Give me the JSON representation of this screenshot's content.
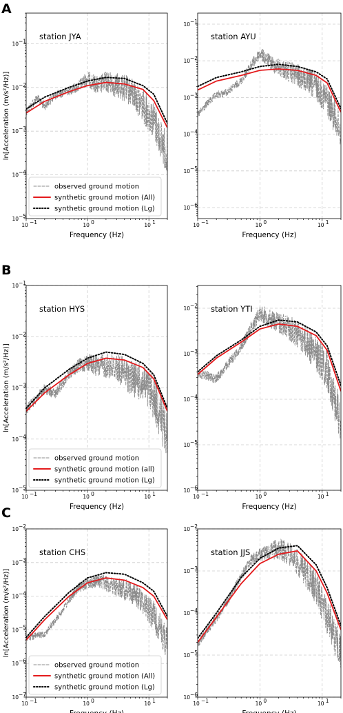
{
  "figure": {
    "panel_letters": [
      "A",
      "B",
      "C"
    ]
  },
  "colors": {
    "observed": "#8c8c8c",
    "synthetic_all": "#e41a1c",
    "synthetic_lg": "#000000",
    "grid": "#cccccc"
  },
  "chart_data": [
    {
      "type": "line",
      "panel": "A",
      "station": "station JYA",
      "xlabel": "Frequency (Hz)",
      "ylabel": "ln[Acceleration (m/s²/Hz)]",
      "xscale": "log",
      "yscale": "log",
      "xlim": [
        0.1,
        20
      ],
      "ylim": [
        -5,
        -0.3
      ],
      "yticks": [
        -5,
        -4,
        -3,
        -2,
        -1
      ],
      "grid": true,
      "legend": "lower-left",
      "legend_entries": [
        "observed ground motion",
        "synthetic ground motion (All)",
        "synthetic ground motion (Lg)"
      ],
      "synthetic_all": [
        [
          0.1,
          0.0026
        ],
        [
          0.2,
          0.0048
        ],
        [
          0.5,
          0.008
        ],
        [
          1,
          0.011
        ],
        [
          2,
          0.013
        ],
        [
          4,
          0.012
        ],
        [
          8,
          0.009
        ],
        [
          12,
          0.005
        ],
        [
          20,
          0.0012
        ]
      ],
      "synthetic_lg": [
        [
          0.1,
          0.0032
        ],
        [
          0.2,
          0.006
        ],
        [
          0.5,
          0.01
        ],
        [
          1,
          0.014
        ],
        [
          2,
          0.017
        ],
        [
          4,
          0.016
        ],
        [
          8,
          0.011
        ],
        [
          12,
          0.007
        ],
        [
          20,
          0.0015
        ]
      ],
      "observed_envelope": [
        [
          0.1,
          0.003
        ],
        [
          0.15,
          0.006
        ],
        [
          0.2,
          0.004
        ],
        [
          0.3,
          0.007
        ],
        [
          0.5,
          0.009
        ],
        [
          0.7,
          0.012
        ],
        [
          1,
          0.02
        ],
        [
          1.5,
          0.015
        ],
        [
          2,
          0.02
        ],
        [
          3,
          0.018
        ],
        [
          5,
          0.015
        ],
        [
          8,
          0.008
        ],
        [
          12,
          0.004
        ],
        [
          20,
          0.0007
        ]
      ]
    },
    {
      "type": "line",
      "panel": "A",
      "station": "station AYU",
      "xlabel": "Frequency (Hz)",
      "ylabel": "",
      "xscale": "log",
      "yscale": "log",
      "xlim": [
        0.1,
        20
      ],
      "ylim": [
        -6.3,
        -0.7
      ],
      "yticks": [
        -6,
        -5,
        -4,
        -3,
        -2,
        -1
      ],
      "grid": true,
      "legend": "none",
      "synthetic_all": [
        [
          0.1,
          0.0016
        ],
        [
          0.2,
          0.0028
        ],
        [
          0.5,
          0.004
        ],
        [
          1,
          0.0055
        ],
        [
          2,
          0.006
        ],
        [
          4,
          0.0055
        ],
        [
          8,
          0.004
        ],
        [
          12,
          0.0025
        ],
        [
          20,
          0.0004
        ]
      ],
      "synthetic_lg": [
        [
          0.1,
          0.002
        ],
        [
          0.2,
          0.0035
        ],
        [
          0.5,
          0.005
        ],
        [
          1,
          0.007
        ],
        [
          2,
          0.008
        ],
        [
          4,
          0.007
        ],
        [
          8,
          0.005
        ],
        [
          12,
          0.0032
        ],
        [
          20,
          0.0005
        ]
      ],
      "observed_envelope": [
        [
          0.1,
          0.00035
        ],
        [
          0.15,
          0.0008
        ],
        [
          0.2,
          0.0012
        ],
        [
          0.3,
          0.0015
        ],
        [
          0.5,
          0.003
        ],
        [
          0.7,
          0.008
        ],
        [
          1,
          0.02
        ],
        [
          1.5,
          0.012
        ],
        [
          2,
          0.01
        ],
        [
          3,
          0.008
        ],
        [
          5,
          0.006
        ],
        [
          8,
          0.004
        ],
        [
          12,
          0.002
        ],
        [
          20,
          0.0003
        ]
      ]
    },
    {
      "type": "line",
      "panel": "B",
      "station": "station HYS",
      "xlabel": "Frequency (Hz)",
      "ylabel": "ln[Acceleration (m/s²/Hz)]",
      "xscale": "log",
      "yscale": "log",
      "xlim": [
        0.1,
        20
      ],
      "ylim": [
        -5,
        -1
      ],
      "yticks": [
        -5,
        -4,
        -3,
        -2,
        -1
      ],
      "grid": true,
      "legend": "lower-left",
      "legend_entries": [
        "observed ground motion",
        "synthetic ground motion (all)",
        "synthetic ground motion (Lg)"
      ],
      "synthetic_all": [
        [
          0.1,
          0.00035
        ],
        [
          0.2,
          0.0008
        ],
        [
          0.5,
          0.0018
        ],
        [
          1,
          0.003
        ],
        [
          2,
          0.0038
        ],
        [
          4,
          0.0035
        ],
        [
          8,
          0.0025
        ],
        [
          12,
          0.0015
        ],
        [
          20,
          0.00035
        ]
      ],
      "synthetic_lg": [
        [
          0.1,
          0.0004
        ],
        [
          0.2,
          0.001
        ],
        [
          0.5,
          0.0023
        ],
        [
          1,
          0.0038
        ],
        [
          2,
          0.005
        ],
        [
          4,
          0.0045
        ],
        [
          8,
          0.003
        ],
        [
          12,
          0.0018
        ],
        [
          20,
          0.0004
        ]
      ],
      "observed_envelope": [
        [
          0.1,
          0.0004
        ],
        [
          0.2,
          0.001
        ],
        [
          0.3,
          0.0008
        ],
        [
          0.5,
          0.002
        ],
        [
          0.7,
          0.003
        ],
        [
          1,
          0.004
        ],
        [
          1.5,
          0.0035
        ],
        [
          2,
          0.004
        ],
        [
          3,
          0.004
        ],
        [
          5,
          0.003
        ],
        [
          8,
          0.0025
        ],
        [
          12,
          0.0015
        ],
        [
          20,
          0.0003
        ]
      ]
    },
    {
      "type": "line",
      "panel": "B",
      "station": "station YTI",
      "xlabel": "Frequency (Hz)",
      "ylabel": "",
      "xscale": "log",
      "yscale": "log",
      "xlim": [
        0.1,
        20
      ],
      "ylim": [
        -6,
        -1.5
      ],
      "yticks": [
        -6,
        -5,
        -4,
        -3,
        -2
      ],
      "grid": true,
      "legend": "none",
      "synthetic_all": [
        [
          0.1,
          0.00035
        ],
        [
          0.2,
          0.0008
        ],
        [
          0.5,
          0.0018
        ],
        [
          1,
          0.0035
        ],
        [
          2,
          0.0045
        ],
        [
          4,
          0.004
        ],
        [
          8,
          0.0025
        ],
        [
          12,
          0.0012
        ],
        [
          20,
          0.00015
        ]
      ],
      "synthetic_lg": [
        [
          0.1,
          0.0004
        ],
        [
          0.2,
          0.0009
        ],
        [
          0.5,
          0.002
        ],
        [
          1,
          0.004
        ],
        [
          2,
          0.0055
        ],
        [
          4,
          0.005
        ],
        [
          8,
          0.003
        ],
        [
          12,
          0.0015
        ],
        [
          20,
          0.0002
        ]
      ],
      "observed_envelope": [
        [
          0.1,
          0.0004
        ],
        [
          0.2,
          0.0003
        ],
        [
          0.3,
          0.0006
        ],
        [
          0.5,
          0.0015
        ],
        [
          0.7,
          0.004
        ],
        [
          1,
          0.01
        ],
        [
          1.5,
          0.008
        ],
        [
          2,
          0.007
        ],
        [
          3,
          0.006
        ],
        [
          5,
          0.004
        ],
        [
          8,
          0.002
        ],
        [
          12,
          0.001
        ],
        [
          20,
          8e-05
        ]
      ]
    },
    {
      "type": "line",
      "panel": "C",
      "station": "station CHS",
      "xlabel": "Frequency (Hz)",
      "ylabel": "ln[Acceleration (m/s²/Hz)]",
      "xscale": "log",
      "yscale": "log",
      "xlim": [
        0.1,
        20
      ],
      "ylim": [
        -7,
        -2
      ],
      "yticks": [
        -7,
        -6,
        -5,
        -4,
        -3,
        -2
      ],
      "grid": true,
      "legend": "lower-left",
      "legend_entries": [
        "observed ground motion",
        "synthetic ground motion (All)",
        "synthetic ground motion (Lg)"
      ],
      "synthetic_all": [
        [
          0.1,
          5e-06
        ],
        [
          0.2,
          2e-05
        ],
        [
          0.5,
          0.0001
        ],
        [
          1,
          0.00025
        ],
        [
          2,
          0.00035
        ],
        [
          4,
          0.0003
        ],
        [
          8,
          0.00018
        ],
        [
          12,
          0.0001
        ],
        [
          20,
          2e-05
        ]
      ],
      "synthetic_lg": [
        [
          0.1,
          6e-06
        ],
        [
          0.2,
          2.5e-05
        ],
        [
          0.5,
          0.00013
        ],
        [
          1,
          0.00035
        ],
        [
          2,
          0.0005
        ],
        [
          4,
          0.00045
        ],
        [
          8,
          0.00025
        ],
        [
          12,
          0.00014
        ],
        [
          20,
          2.5e-05
        ]
      ],
      "observed_envelope": [
        [
          0.1,
          6e-06
        ],
        [
          0.2,
          8e-06
        ],
        [
          0.3,
          2e-05
        ],
        [
          0.5,
          8e-05
        ],
        [
          0.7,
          0.0002
        ],
        [
          1,
          0.0003
        ],
        [
          1.5,
          0.0004
        ],
        [
          2,
          0.00035
        ],
        [
          3,
          0.0003
        ],
        [
          5,
          0.00025
        ],
        [
          8,
          0.00015
        ],
        [
          12,
          6e-05
        ],
        [
          20,
          1e-05
        ]
      ]
    },
    {
      "type": "line",
      "panel": "C",
      "station": "station JJS",
      "xlabel": "Frequency (Hz)",
      "ylabel": "",
      "xscale": "log",
      "yscale": "log",
      "xlim": [
        0.1,
        20
      ],
      "ylim": [
        -6,
        -2
      ],
      "yticks": [
        -6,
        -5,
        -4,
        -3,
        -2
      ],
      "grid": true,
      "legend": "none",
      "synthetic_all": [
        [
          0.1,
          2e-05
        ],
        [
          0.2,
          8e-05
        ],
        [
          0.5,
          0.0005
        ],
        [
          1,
          0.0015
        ],
        [
          2,
          0.0025
        ],
        [
          4,
          0.003
        ],
        [
          8,
          0.001
        ],
        [
          12,
          0.0003
        ],
        [
          20,
          4e-05
        ]
      ],
      "synthetic_lg": [
        [
          0.1,
          2.5e-05
        ],
        [
          0.2,
          0.0001
        ],
        [
          0.5,
          0.0007
        ],
        [
          1,
          0.002
        ],
        [
          2,
          0.0035
        ],
        [
          4,
          0.004
        ],
        [
          8,
          0.0014
        ],
        [
          12,
          0.0004
        ],
        [
          20,
          5e-05
        ]
      ],
      "observed_envelope": [
        [
          0.1,
          2e-05
        ],
        [
          0.2,
          8e-05
        ],
        [
          0.3,
          0.0002
        ],
        [
          0.5,
          0.0008
        ],
        [
          0.7,
          0.002
        ],
        [
          1,
          0.003
        ],
        [
          1.5,
          0.004
        ],
        [
          2,
          0.005
        ],
        [
          3,
          0.004
        ],
        [
          5,
          0.002
        ],
        [
          8,
          0.0008
        ],
        [
          12,
          0.0002
        ],
        [
          20,
          3e-05
        ]
      ]
    }
  ]
}
